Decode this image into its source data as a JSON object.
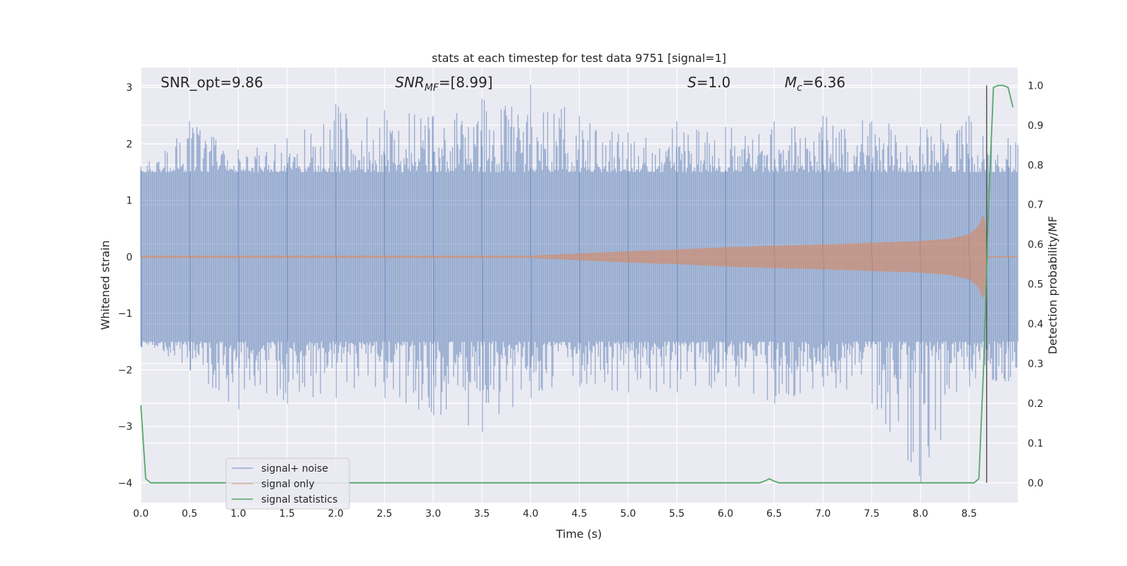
{
  "chart_data": {
    "type": "line",
    "title": "stats at each timestep for test data 9751 [signal=1]",
    "xlabel": "Time (s)",
    "ylabel": "Whitened strain",
    "y2label": "Detection probability/MF",
    "xlim": [
      0.0,
      9.0
    ],
    "ylim": [
      -4.35,
      3.35
    ],
    "y2lim": [
      -0.05,
      1.045
    ],
    "xticks": [
      0.0,
      0.5,
      1.0,
      1.5,
      2.0,
      2.5,
      3.0,
      3.5,
      4.0,
      4.5,
      5.0,
      5.5,
      6.0,
      6.5,
      7.0,
      7.5,
      8.0,
      8.5
    ],
    "xtick_labels": [
      "0.0",
      "0.5",
      "1.0",
      "1.5",
      "2.0",
      "2.5",
      "3.0",
      "3.5",
      "4.0",
      "4.5",
      "5.0",
      "5.5",
      "6.0",
      "6.5",
      "7.0",
      "7.5",
      "8.0",
      "8.5"
    ],
    "yticks": [
      3,
      2,
      1,
      0,
      -1,
      -2,
      -3,
      -4
    ],
    "ytick_labels": [
      "3",
      "2",
      "1",
      "0",
      "−1",
      "−2",
      "−3",
      "−4"
    ],
    "y2ticks": [
      1.0,
      0.9,
      0.8,
      0.7,
      0.6,
      0.5,
      0.4,
      0.3,
      0.2,
      0.1,
      0.0
    ],
    "y2tick_labels": [
      "1.0",
      "0.9",
      "0.8",
      "0.7",
      "0.6",
      "0.5",
      "0.4",
      "0.3",
      "0.2",
      "0.1",
      "0.0"
    ],
    "grid": true,
    "legend_position": "lower-left",
    "annotations": {
      "snr_opt": "SNR_opt=9.86",
      "snr_mf_base": "SNR",
      "snr_mf_sub": "MF",
      "snr_mf_rest": "=[8.99]",
      "s_base": "S",
      "s_rest": "=1.0",
      "mc_base": "M",
      "mc_sub": "c",
      "mc_rest": "=6.36"
    },
    "vline_x": 8.68,
    "series": [
      {
        "name": "signal+ noise",
        "color": "#4c72b0",
        "envelope": {
          "upper": {
            "x": [
              0.0,
              0.5,
              1.0,
              1.5,
              2.0,
              2.5,
              3.0,
              3.5,
              4.0,
              4.5,
              5.0,
              5.5,
              6.0,
              6.5,
              7.0,
              7.5,
              8.0,
              8.5,
              8.9
            ],
            "y": [
              1.6,
              2.4,
              1.9,
              2.1,
              2.7,
              2.6,
              2.5,
              2.8,
              3.05,
              2.5,
              2.2,
              2.4,
              2.3,
              2.4,
              2.5,
              2.4,
              2.3,
              2.5,
              2.1
            ]
          },
          "lower": {
            "x": [
              0.0,
              0.5,
              1.0,
              1.5,
              2.0,
              2.5,
              3.0,
              3.5,
              4.0,
              4.5,
              5.0,
              5.5,
              6.0,
              6.5,
              7.0,
              7.5,
              8.0,
              8.5,
              8.9
            ],
            "y": [
              -1.6,
              -2.0,
              -2.7,
              -2.6,
              -2.5,
              -2.5,
              -2.8,
              -3.1,
              -2.5,
              -2.3,
              -2.4,
              -2.4,
              -2.3,
              -2.6,
              -2.3,
              -2.6,
              -4.0,
              -2.3,
              -2.2
            ]
          },
          "core": 1.5
        }
      },
      {
        "name": "signal only",
        "color": "#dd8452",
        "envelope": {
          "x": [
            0.0,
            4.0,
            4.5,
            5.0,
            5.5,
            6.0,
            6.5,
            7.0,
            7.5,
            8.0,
            8.3,
            8.5,
            8.6,
            8.65,
            8.7
          ],
          "amp": [
            0.02,
            0.02,
            0.06,
            0.1,
            0.13,
            0.17,
            0.2,
            0.22,
            0.25,
            0.28,
            0.32,
            0.4,
            0.55,
            0.8,
            0.0
          ]
        }
      },
      {
        "name": "signal statistics",
        "color": "#55a868",
        "axis": "right",
        "x": [
          0.0,
          0.05,
          0.1,
          6.35,
          6.4,
          6.45,
          6.5,
          6.55,
          8.55,
          8.6,
          8.65,
          8.7,
          8.75,
          8.8,
          8.85,
          8.9,
          8.95
        ],
        "y": [
          0.195,
          0.01,
          0.0,
          0.0,
          0.004,
          0.01,
          0.004,
          0.0,
          0.0,
          0.01,
          0.3,
          0.7,
          0.995,
          1.0,
          1.0,
          0.995,
          0.945
        ]
      }
    ]
  }
}
